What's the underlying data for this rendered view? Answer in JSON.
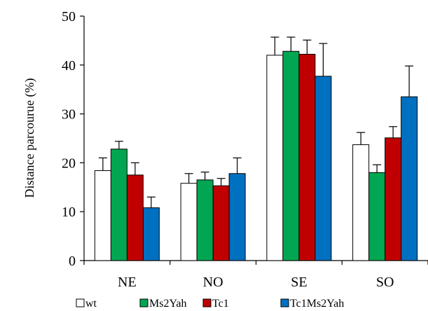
{
  "chart_data": {
    "type": "bar",
    "ylabel": "Distance parcourue (%)",
    "xlabel": "",
    "ylim": [
      0,
      50
    ],
    "yticks": [
      0,
      10,
      20,
      30,
      40,
      50
    ],
    "grid": false,
    "legend_position": "bottom",
    "categories": [
      "NE",
      "NO",
      "SE",
      "SO"
    ],
    "series": [
      {
        "name": "wt",
        "color": "#ffffff",
        "values": [
          18.4,
          15.8,
          42.0,
          23.7
        ],
        "errors": [
          2.6,
          2.0,
          3.7,
          2.5
        ]
      },
      {
        "name": "Ms2Yah",
        "color": "#00a651",
        "values": [
          22.8,
          16.5,
          42.8,
          18.0
        ],
        "errors": [
          1.6,
          1.6,
          2.9,
          1.6
        ]
      },
      {
        "name": "Tc1",
        "color": "#c00000",
        "values": [
          17.5,
          15.3,
          42.2,
          25.1
        ],
        "errors": [
          2.5,
          1.5,
          2.9,
          2.3
        ]
      },
      {
        "name": "Tc1Ms2Yah",
        "color": "#0070c0",
        "values": [
          10.8,
          17.8,
          37.7,
          33.5
        ],
        "errors": [
          2.2,
          3.2,
          6.7,
          6.3
        ]
      }
    ]
  }
}
